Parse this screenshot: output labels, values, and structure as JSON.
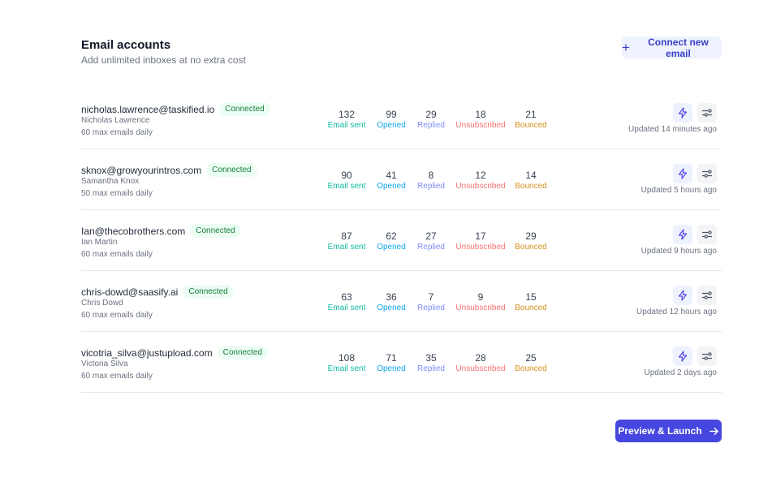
{
  "header": {
    "title": "Email accounts",
    "subtitle": "Add unlimited inboxes at no extra cost",
    "connect_label": "Connect new email"
  },
  "stat_labels": [
    "Email sent",
    "Opened",
    "Replied",
    "Unsubscribed",
    "Bounced"
  ],
  "stat_colors": [
    "#10b9a0",
    "#0ea5e9",
    "#818cf8",
    "#f87171",
    "#d4901c"
  ],
  "accounts": [
    {
      "email": "nicholas.lawrence@taskified.io",
      "status": "Connected",
      "name": "Nicholas Lawrence",
      "daily": "60 max emails daily",
      "stats": [
        "132",
        "99",
        "29",
        "18",
        "21"
      ],
      "updated": "Updated 14 minutes ago"
    },
    {
      "email": "sknox@growyourintros.com",
      "status": "Connected",
      "name": "Samantha Knox",
      "daily": "50 max emails daily",
      "stats": [
        "90",
        "41",
        "8",
        "12",
        "14"
      ],
      "updated": "Updated 5 hours ago"
    },
    {
      "email": "Ian@thecobrothers.com",
      "status": "Connected",
      "name": "Ian Martin",
      "daily": "60 max emails daily",
      "stats": [
        "87",
        "62",
        "27",
        "17",
        "29"
      ],
      "updated": "Updated 9 hours ago"
    },
    {
      "email": "chris-dowd@saasify.ai",
      "status": "Connected",
      "name": "Chris Dowd",
      "daily": "60 max emails daily",
      "stats": [
        "63",
        "36",
        "7",
        "9",
        "15"
      ],
      "updated": "Updated 12 hours ago"
    },
    {
      "email": "vicotria_silva@justupload.com",
      "status": "Connected",
      "name": "Victoria Silva",
      "daily": "60 max emails daily",
      "stats": [
        "108",
        "71",
        "35",
        "28",
        "25"
      ],
      "updated": "Updated 2 days ago"
    }
  ],
  "footer": {
    "launch_label": "Preview & Launch"
  }
}
